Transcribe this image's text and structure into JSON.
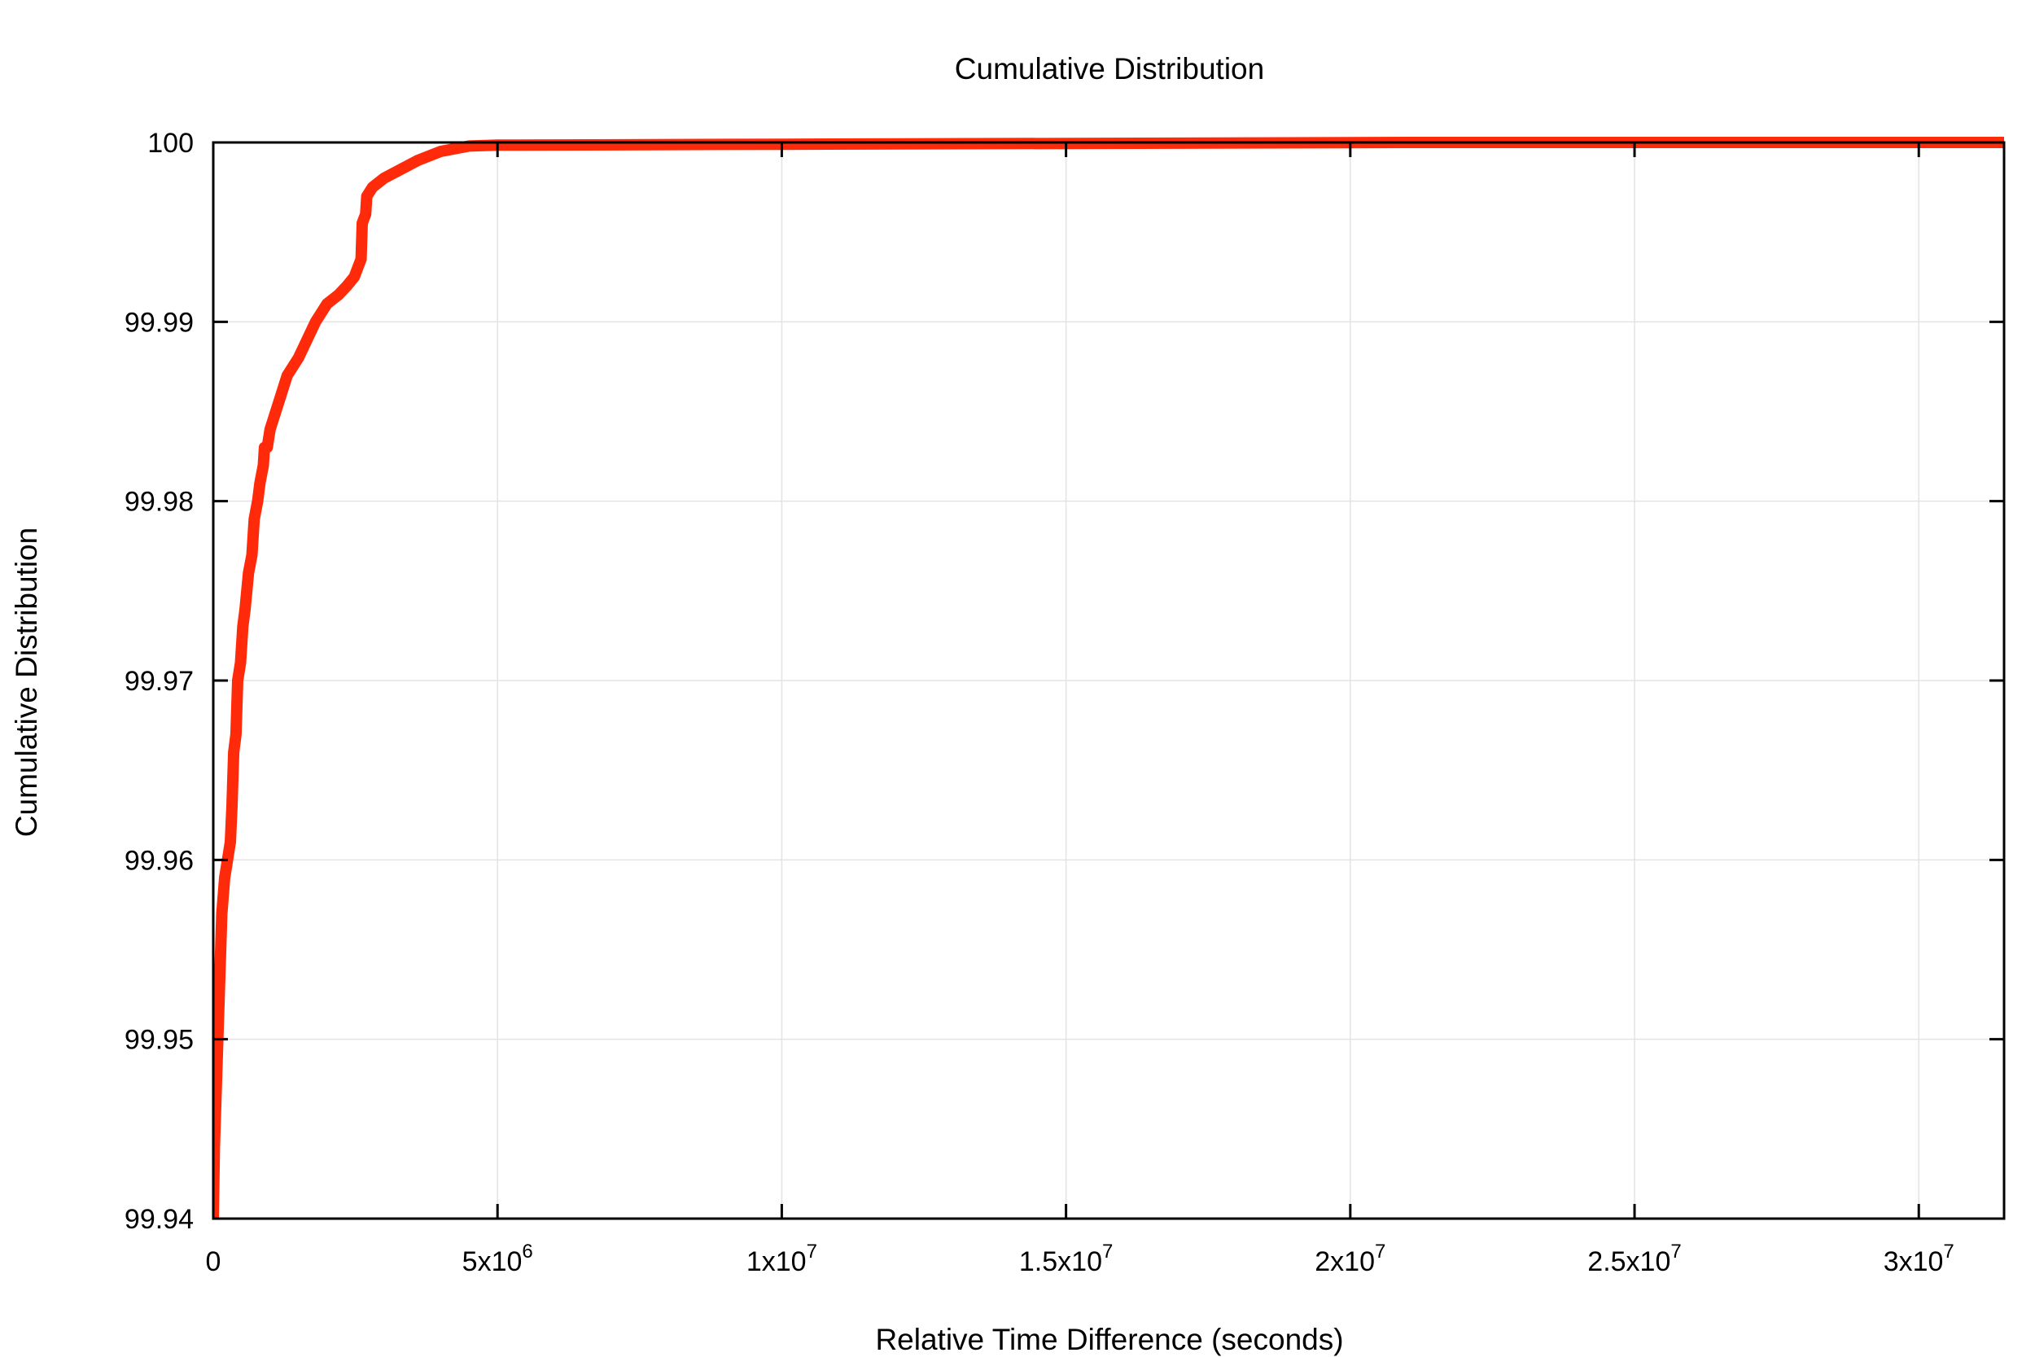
{
  "chart_data": {
    "type": "line",
    "title": "Cumulative Distribution",
    "xlabel": "Relative Time Difference (seconds)",
    "ylabel": "Cumulative Distribution",
    "xlim": [
      0,
      31500000
    ],
    "ylim": [
      99.94,
      100
    ],
    "grid": true,
    "legend": "none",
    "x_ticks": [
      {
        "value": 0,
        "mantissa": "0",
        "exponent": ""
      },
      {
        "value": 5000000,
        "mantissa": "5x10",
        "exponent": "6"
      },
      {
        "value": 10000000,
        "mantissa": "1x10",
        "exponent": "7"
      },
      {
        "value": 15000000,
        "mantissa": "1.5x10",
        "exponent": "7"
      },
      {
        "value": 20000000,
        "mantissa": "2x10",
        "exponent": "7"
      },
      {
        "value": 25000000,
        "mantissa": "2.5x10",
        "exponent": "7"
      },
      {
        "value": 30000000,
        "mantissa": "3x10",
        "exponent": "7"
      }
    ],
    "y_ticks": [
      "99.94",
      "99.95",
      "99.96",
      "99.97",
      "99.98",
      "99.99",
      "100"
    ],
    "series": [
      {
        "color": "#ff2a0a",
        "points": [
          [
            0,
            99.94
          ],
          [
            20000,
            99.944
          ],
          [
            50000,
            99.947
          ],
          [
            80000,
            99.95
          ],
          [
            110000,
            99.953
          ],
          [
            150000,
            99.957
          ],
          [
            200000,
            99.959
          ],
          [
            250000,
            99.96
          ],
          [
            300000,
            99.961
          ],
          [
            330000,
            99.963
          ],
          [
            360000,
            99.966
          ],
          [
            400000,
            99.967
          ],
          [
            430000,
            99.97
          ],
          [
            480000,
            99.971
          ],
          [
            520000,
            99.973
          ],
          [
            560000,
            99.974
          ],
          [
            620000,
            99.976
          ],
          [
            680000,
            99.977
          ],
          [
            720000,
            99.979
          ],
          [
            780000,
            99.98
          ],
          [
            820000,
            99.981
          ],
          [
            880000,
            99.982
          ],
          [
            900000,
            99.983
          ],
          [
            950000,
            99.983
          ],
          [
            1000000,
            99.984
          ],
          [
            1100000,
            99.985
          ],
          [
            1200000,
            99.986
          ],
          [
            1300000,
            99.987
          ],
          [
            1400000,
            99.9875
          ],
          [
            1500000,
            99.988
          ],
          [
            1650000,
            99.989
          ],
          [
            1800000,
            99.99
          ],
          [
            2000000,
            99.991
          ],
          [
            2200000,
            99.9915
          ],
          [
            2350000,
            99.992
          ],
          [
            2480000,
            99.9925
          ],
          [
            2600000,
            99.9935
          ],
          [
            2620000,
            99.9955
          ],
          [
            2680000,
            99.996
          ],
          [
            2700000,
            99.997
          ],
          [
            2800000,
            99.9975
          ],
          [
            3000000,
            99.998
          ],
          [
            3300000,
            99.9985
          ],
          [
            3600000,
            99.999
          ],
          [
            4000000,
            99.9995
          ],
          [
            4500000,
            99.9998
          ],
          [
            5000000,
            99.99985
          ],
          [
            10000000,
            99.9999
          ],
          [
            21000000,
            100.0
          ],
          [
            31500000,
            100.0
          ]
        ]
      }
    ]
  }
}
